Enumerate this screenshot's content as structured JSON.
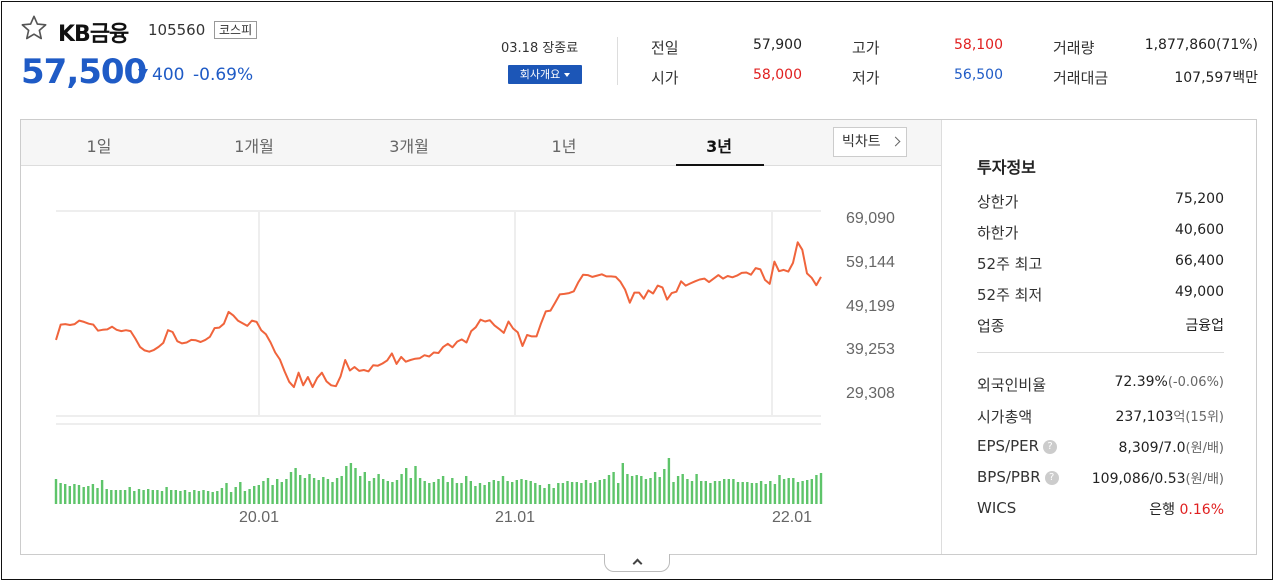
{
  "header": {
    "stock_name": "KB금융",
    "stock_code": "105560",
    "market": "코스피",
    "price": "57,500",
    "change": "400",
    "change_pct": "-0.69%",
    "date_status": "03.18 장종료",
    "company_btn": "회사개요"
  },
  "quote": {
    "prev_close_label": "전일",
    "prev_close": "57,900",
    "open_label": "시가",
    "open": "58,000",
    "high_label": "고가",
    "high": "58,100",
    "low_label": "저가",
    "low": "56,500",
    "volume_label": "거래량",
    "volume": "1,877,860(71%)",
    "amount_label": "거래대금",
    "amount": "107,597백만"
  },
  "tabs": [
    "1일",
    "1개월",
    "3개월",
    "1년",
    "3년"
  ],
  "active_tab": "3년",
  "big_chart_btn": "빅차트",
  "chart_data": {
    "type": "line",
    "y_ticks": [
      "69,090",
      "59,144",
      "49,199",
      "39,253",
      "29,308"
    ],
    "x_ticks": [
      "20.01",
      "21.01",
      "22.01"
    ],
    "ylim": [
      29308,
      69090
    ],
    "line_color": "#f0643c",
    "volume_color": "#5ec46a",
    "series": [
      {
        "values": [
          41000,
          44500,
          44600,
          44400,
          44600,
          45400,
          45100,
          44700,
          44500,
          43100,
          43300,
          43400,
          44000,
          43300,
          43000,
          43200,
          43000,
          41300,
          39400,
          38600,
          38300,
          38700,
          39400,
          40300,
          43200,
          42800,
          40700,
          40200,
          40400,
          41000,
          40900,
          40500,
          41000,
          41700,
          43700,
          43800,
          44700,
          47400,
          46600,
          45400,
          44800,
          44200,
          45400,
          45100,
          43200,
          42300,
          40400,
          38100,
          36500,
          33800,
          31400,
          30200,
          33500,
          30600,
          32500,
          30200,
          32300,
          33500,
          31500,
          30600,
          30400,
          32600,
          36400,
          34000,
          34800,
          33900,
          34100,
          33800,
          35200,
          35100,
          35600,
          36300,
          37900,
          35500,
          37100,
          36000,
          36400,
          36700,
          36800,
          37500,
          37200,
          38100,
          38000,
          39400,
          40100,
          39300,
          40600,
          41100,
          40400,
          43000,
          43900,
          45600,
          45200,
          45500,
          44300,
          43500,
          42600,
          45200,
          43600,
          42700,
          39600,
          42100,
          41800,
          41800,
          44800,
          47500,
          47700,
          49500,
          51400,
          51500,
          51700,
          52100,
          54200,
          55900,
          55800,
          55400,
          55700,
          56000,
          55500,
          55500,
          55400,
          54300,
          52500,
          49500,
          51800,
          51800,
          50400,
          52300,
          51600,
          53400,
          53000,
          50200,
          51700,
          52000,
          54400,
          53400,
          53900,
          54400,
          54800,
          55000,
          54200,
          55000,
          55800,
          55000,
          55600,
          55300,
          55700,
          56300,
          56400,
          55900,
          57400,
          57100,
          54700,
          53800,
          58900,
          56700,
          57000,
          56600,
          58600,
          63300,
          61600,
          56200,
          55200,
          53500,
          55400
        ]
      },
      {
        "name": "volume",
        "values": [
          25,
          21,
          20,
          18,
          20,
          19,
          17,
          18,
          20,
          16,
          24,
          15,
          14,
          14,
          14,
          14,
          17,
          13,
          15,
          14,
          15,
          14,
          14,
          13,
          17,
          14,
          14,
          13,
          14,
          12,
          14,
          13,
          14,
          13,
          12,
          13,
          16,
          21,
          12,
          17,
          22,
          13,
          15,
          18,
          19,
          23,
          26,
          19,
          25,
          22,
          25,
          32,
          36,
          29,
          26,
          30,
          26,
          24,
          27,
          25,
          22,
          26,
          28,
          38,
          41,
          36,
          28,
          32,
          23,
          26,
          30,
          25,
          23,
          22,
          24,
          30,
          36,
          26,
          38,
          26,
          23,
          21,
          22,
          25,
          28,
          22,
          26,
          21,
          21,
          28,
          23,
          18,
          21,
          19,
          22,
          24,
          23,
          28,
          23,
          22,
          24,
          25,
          24,
          23,
          21,
          19,
          16,
          20,
          16,
          21,
          21,
          23,
          22,
          22,
          21,
          24,
          21,
          22,
          24,
          25,
          29,
          32,
          21,
          41,
          30,
          28,
          29,
          28,
          25,
          26,
          32,
          27,
          35,
          46,
          22,
          28,
          30,
          25,
          23,
          30,
          23,
          23,
          21,
          23,
          23,
          25,
          25,
          25,
          22,
          22,
          22,
          21,
          21,
          23,
          20,
          23,
          20,
          29,
          25,
          26,
          26,
          22,
          23,
          24,
          25,
          29,
          31
        ]
      }
    ]
  },
  "info": {
    "title": "투자정보",
    "rows": [
      {
        "label": "상한가",
        "value": "75,200"
      },
      {
        "label": "하한가",
        "value": "40,600"
      },
      {
        "label": "52주 최고",
        "value": "66,400"
      },
      {
        "label": "52주 최저",
        "value": "49,000"
      },
      {
        "label": "업종",
        "value": "금융업"
      }
    ],
    "foreign_label": "외국인비율",
    "foreign_value": "72.39%",
    "foreign_chg": "(-0.06%)",
    "mcap_label": "시가총액",
    "mcap_value": "237,103",
    "mcap_unit": "억(15위)",
    "eps_label": "EPS/PER",
    "eps_value": "8,309/7.0",
    "eps_unit": "(원/배)",
    "bps_label": "BPS/PBR",
    "bps_value": "109,086/0.53",
    "bps_unit": "(원/배)",
    "wics_label": "WICS",
    "wics_value": "은행",
    "wics_pct": "0.16%",
    "help": "?"
  }
}
